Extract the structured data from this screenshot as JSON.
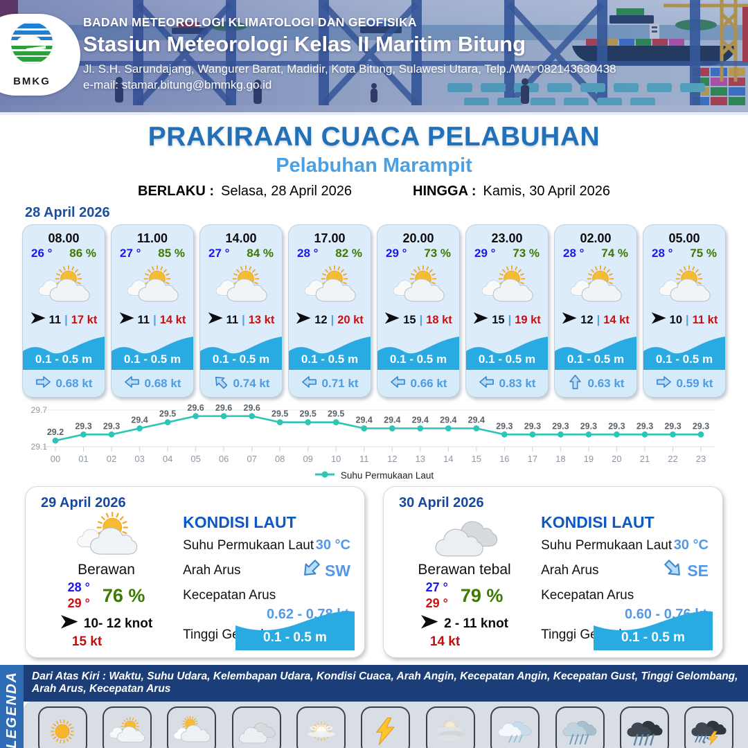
{
  "header": {
    "agency": "BADAN METEOROLOGI KLIMATOLOGI DAN GEOFISIKA",
    "station": "Stasiun Meteorologi Kelas II Maritim Bitung",
    "address": "Jl. S.H. Sarundajang, Wangurer Barat, Madidir, Kota Bitung, Sulawesi Utara, Telp./WA: 082143630438",
    "email": "e-mail: stamar.bitung@bmmkg.go.id",
    "logo_text": "BMKG"
  },
  "title": {
    "main": "PRAKIRAAN CUACA PELABUHAN",
    "sub": "Pelabuhan Marampit",
    "valid_from_label": "BERLAKU :",
    "valid_from": "Selasa, 28 April 2026",
    "valid_to_label": "HINGGA :",
    "valid_to": "Kamis, 30 April 2026"
  },
  "forecast_date": "28 April 2026",
  "labels": {
    "wind_sep": "|"
  },
  "forecast_cards": [
    {
      "time": "08.00",
      "temp": "26 °",
      "humidity": "86 %",
      "weather": "cerah-berawan",
      "wind": "11",
      "gust": "17 kt",
      "wave": "0.1 - 0.5 m",
      "current_dir": "right",
      "current": "0.68 kt"
    },
    {
      "time": "11.00",
      "temp": "27 °",
      "humidity": "85 %",
      "weather": "cerah-berawan",
      "wind": "11",
      "gust": "14 kt",
      "wave": "0.1 - 0.5 m",
      "current_dir": "left",
      "current": "0.68 kt"
    },
    {
      "time": "14.00",
      "temp": "27 °",
      "humidity": "84 %",
      "weather": "cerah-berawan",
      "wind": "11",
      "gust": "13 kt",
      "wave": "0.1 - 0.5 m",
      "current_dir": "up-left",
      "current": "0.74 kt"
    },
    {
      "time": "17.00",
      "temp": "28 °",
      "humidity": "82 %",
      "weather": "cerah-berawan",
      "wind": "12",
      "gust": "20 kt",
      "wave": "0.1 - 0.5 m",
      "current_dir": "left",
      "current": "0.71 kt"
    },
    {
      "time": "20.00",
      "temp": "29 °",
      "humidity": "73 %",
      "weather": "cerah-berawan",
      "wind": "15",
      "gust": "18 kt",
      "wave": "0.1 - 0.5 m",
      "current_dir": "left",
      "current": "0.66 kt"
    },
    {
      "time": "23.00",
      "temp": "29 °",
      "humidity": "73 %",
      "weather": "cerah-berawan",
      "wind": "15",
      "gust": "19 kt",
      "wave": "0.1 - 0.5 m",
      "current_dir": "left",
      "current": "0.83 kt"
    },
    {
      "time": "02.00",
      "temp": "28 °",
      "humidity": "74 %",
      "weather": "cerah-berawan",
      "wind": "12",
      "gust": "14 kt",
      "wave": "0.1 - 0.5 m",
      "current_dir": "up",
      "current": "0.63 kt"
    },
    {
      "time": "05.00",
      "temp": "28 °",
      "humidity": "75 %",
      "weather": "cerah-berawan",
      "wind": "10",
      "gust": "11 kt",
      "wave": "0.1 - 0.5 m",
      "current_dir": "right",
      "current": "0.59 kt"
    }
  ],
  "chart_data": {
    "type": "line",
    "x": [
      "00",
      "01",
      "02",
      "03",
      "04",
      "05",
      "06",
      "07",
      "08",
      "09",
      "10",
      "11",
      "12",
      "13",
      "14",
      "15",
      "16",
      "17",
      "18",
      "19",
      "20",
      "21",
      "22",
      "23"
    ],
    "values": [
      29.2,
      29.3,
      29.3,
      29.4,
      29.5,
      29.6,
      29.6,
      29.6,
      29.5,
      29.5,
      29.5,
      29.4,
      29.4,
      29.4,
      29.4,
      29.4,
      29.3,
      29.3,
      29.3,
      29.3,
      29.3,
      29.3,
      29.3,
      29.3
    ],
    "ylim": [
      29.1,
      29.7
    ],
    "yticks": [
      29.1,
      29.7
    ],
    "legend": "Suhu Permukaan Laut",
    "legend_position": "bottom-center",
    "grid": "top-line-only",
    "line_color": "#2cc5b6"
  },
  "day_cards": [
    {
      "date": "29 April 2026",
      "condition": "Berawan",
      "weather_icon": "cerah-berawan",
      "temp_min": "28 °",
      "temp_max": "29 °",
      "humidity": "76 %",
      "wind_range": "10- 12 knot",
      "gust": "15 kt",
      "sea": {
        "title": "KONDISI LAUT",
        "sst_label": "Suhu Permukaan Laut",
        "sst": "30 °C",
        "current_dir_label": "Arah Arus",
        "current_dir": "SW",
        "current_dir_arrow": "down-left",
        "current_speed_label": "Kecepatan Arus",
        "current_speed": "0.62 - 0.78 kt",
        "wave_label": "Tinggi Gelombang",
        "wave": "0.1 - 0.5 m"
      }
    },
    {
      "date": "30 April 2026",
      "condition": "Berawan tebal",
      "weather_icon": "berawan-tebal",
      "temp_min": "27 °",
      "temp_max": "29 °",
      "humidity": "79 %",
      "wind_range": "2 - 11 knot",
      "gust": "14 kt",
      "sea": {
        "title": "KONDISI LAUT",
        "sst_label": "Suhu Permukaan Laut",
        "sst": "30 °C",
        "current_dir_label": "Arah Arus",
        "current_dir": "SE",
        "current_dir_arrow": "down-right",
        "current_speed_label": "Kecepatan Arus",
        "current_speed": "0.60 - 0.76 kt",
        "wave_label": "Tinggi Gelombang",
        "wave": "0.1 - 0.5 m"
      }
    }
  ],
  "legend": {
    "title": "LEGENDA",
    "header": "Dari Atas Kiri : Waktu, Suhu Udara, Kelembapan Udara, Kondisi Cuaca, Arah Angin, Kecepatan Angin, Kecepatan Gust, Tinggi Gelombang, Arah Arus, Kecepatan Arus",
    "items": [
      {
        "icon": "cerah",
        "label": "Cerah"
      },
      {
        "icon": "cerah-berawan",
        "label": "Cerah Berawan"
      },
      {
        "icon": "berawan",
        "label": "Berawan"
      },
      {
        "icon": "berawan-tebal",
        "label": "Berawan Tebal"
      },
      {
        "icon": "udara-kabur",
        "label": "Udara Kabur"
      },
      {
        "icon": "petir",
        "label": "Petir"
      },
      {
        "icon": "kabut",
        "label": "Kabut"
      },
      {
        "icon": "hujan-ringan",
        "label": "Hujan Ringan"
      },
      {
        "icon": "hujan-sedang",
        "label": "Hujan Sedang"
      },
      {
        "icon": "hujan-lebat",
        "label": "Hujan Lebat"
      },
      {
        "icon": "hujan-petir",
        "label": "Hujan Petir"
      }
    ]
  },
  "colors": {
    "title_blue": "#2170b8",
    "subtitle_blue": "#4b9fe3",
    "date_navy": "#1c4fa1",
    "temp_blue": "#1b16ef",
    "humidity_green": "#3c7a00",
    "gust_red": "#c90f0f",
    "wave_band_blue": "#29abe2",
    "current_blue": "#4d9be0",
    "chart_teal": "#2cc5b6",
    "legend_strip_blue": "#2e6cb5",
    "legend_bar_navy": "#1c3e78"
  }
}
